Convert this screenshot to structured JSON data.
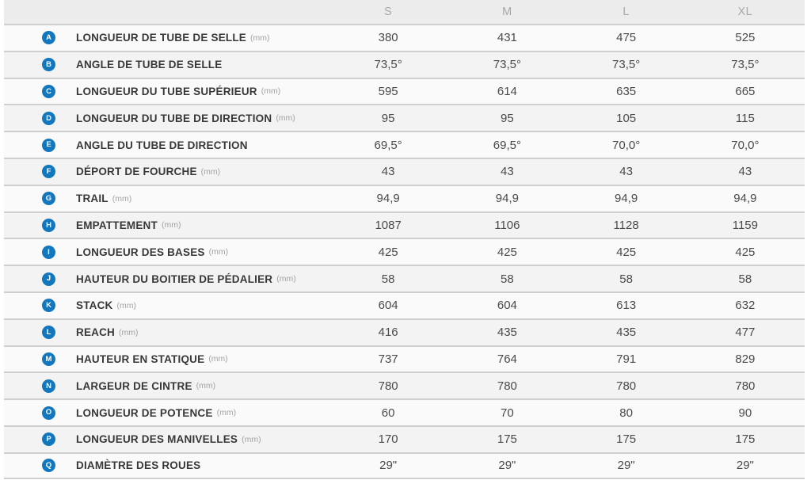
{
  "table": {
    "title": "geometry-spec-table",
    "columns": [
      "S",
      "M",
      "L",
      "XL"
    ],
    "rows": [
      {
        "letter": "A",
        "label": "LONGUEUR DE TUBE DE SELLE",
        "unit": "(mm)",
        "values": [
          "380",
          "431",
          "475",
          "525"
        ]
      },
      {
        "letter": "B",
        "label": "ANGLE DE TUBE DE SELLE",
        "unit": "",
        "values": [
          "73,5°",
          "73,5°",
          "73,5°",
          "73,5°"
        ]
      },
      {
        "letter": "C",
        "label": "LONGUEUR DU TUBE SUPÉRIEUR",
        "unit": "(mm)",
        "values": [
          "595",
          "614",
          "635",
          "665"
        ]
      },
      {
        "letter": "D",
        "label": "LONGUEUR DU TUBE DE DIRECTION",
        "unit": "(mm)",
        "values": [
          "95",
          "95",
          "105",
          "115"
        ]
      },
      {
        "letter": "E",
        "label": "ANGLE DU TUBE DE DIRECTION",
        "unit": "",
        "values": [
          "69,5°",
          "69,5°",
          "70,0°",
          "70,0°"
        ]
      },
      {
        "letter": "F",
        "label": "DÉPORT DE FOURCHE",
        "unit": "(mm)",
        "values": [
          "43",
          "43",
          "43",
          "43"
        ]
      },
      {
        "letter": "G",
        "label": "TRAIL",
        "unit": "(mm)",
        "values": [
          "94,9",
          "94,9",
          "94,9",
          "94,9"
        ]
      },
      {
        "letter": "H",
        "label": "EMPATTEMENT",
        "unit": "(mm)",
        "values": [
          "1087",
          "1106",
          "1128",
          "1159"
        ]
      },
      {
        "letter": "I",
        "label": "LONGUEUR DES BASES",
        "unit": "(mm)",
        "values": [
          "425",
          "425",
          "425",
          "425"
        ]
      },
      {
        "letter": "J",
        "label": "HAUTEUR DU BOITIER DE PÉDALIER",
        "unit": "(mm)",
        "values": [
          "58",
          "58",
          "58",
          "58"
        ]
      },
      {
        "letter": "K",
        "label": "STACK",
        "unit": "(mm)",
        "values": [
          "604",
          "604",
          "613",
          "632"
        ]
      },
      {
        "letter": "L",
        "label": "REACH",
        "unit": "(mm)",
        "values": [
          "416",
          "435",
          "435",
          "477"
        ]
      },
      {
        "letter": "M",
        "label": "HAUTEUR EN STATIQUE",
        "unit": "(mm)",
        "values": [
          "737",
          "764",
          "791",
          "829"
        ]
      },
      {
        "letter": "N",
        "label": "LARGEUR DE CINTRE",
        "unit": "(mm)",
        "values": [
          "780",
          "780",
          "780",
          "780"
        ]
      },
      {
        "letter": "O",
        "label": "LONGUEUR DE POTENCE",
        "unit": "(mm)",
        "values": [
          "60",
          "70",
          "80",
          "90"
        ]
      },
      {
        "letter": "P",
        "label": "LONGUEUR DES MANIVELLES",
        "unit": "(mm)",
        "values": [
          "170",
          "175",
          "175",
          "175"
        ]
      },
      {
        "letter": "Q",
        "label": "DIAMÈTRE DES ROUES",
        "unit": "",
        "values": [
          "29\"",
          "29\"",
          "29\"",
          "29\""
        ]
      }
    ],
    "colors": {
      "badge_blue": "#1277bd",
      "header_bg": "#ececec",
      "row_odd_bg": "#fafafa",
      "row_even_bg": "#f3f3f3",
      "separator": "#cfcfcf",
      "label_text": "#383838",
      "value_text": "#4a4a4a",
      "header_text": "#a8a8a8",
      "unit_text": "#a3a3a3"
    }
  }
}
